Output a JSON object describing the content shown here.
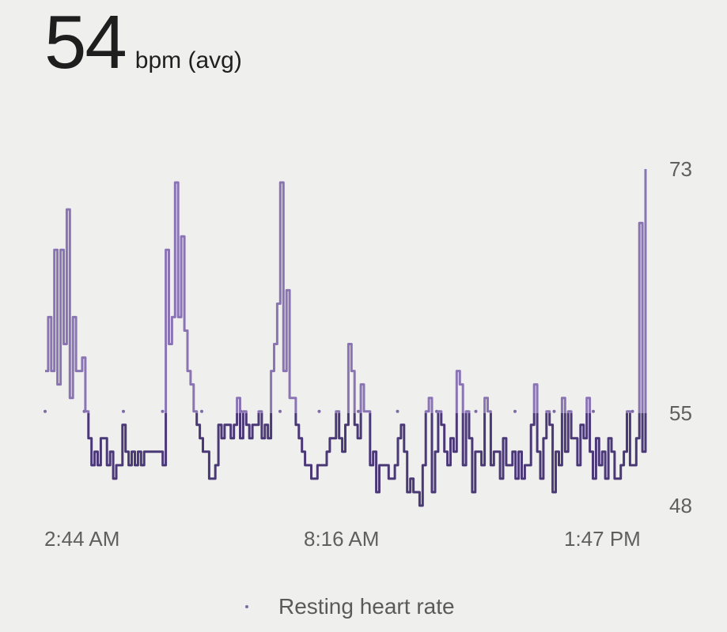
{
  "summary": {
    "value": "54",
    "unit": "bpm (avg)"
  },
  "legend": {
    "label": "Resting heart rate"
  },
  "colors": {
    "above": "#8a74b4",
    "below": "#4b3877",
    "resting_dot": "#7d6aa6",
    "background": "#eff0ee"
  },
  "chart_data": {
    "type": "line",
    "ylim": [
      48,
      73
    ],
    "y_ticks": [
      "73",
      "55",
      "48"
    ],
    "x_ticks": [
      "2:44 AM",
      "8:16 AM",
      "1:47 PM"
    ],
    "resting_rate": 55,
    "series": [
      {
        "values": [
          58,
          62,
          58,
          67,
          57,
          67,
          60,
          70,
          56,
          62,
          58,
          58,
          59,
          55,
          53,
          51,
          52,
          51,
          53,
          53,
          51,
          52,
          50,
          51,
          51,
          54,
          52,
          51,
          52,
          51,
          52,
          51,
          52,
          52,
          52,
          52,
          52,
          52,
          51,
          67,
          60,
          62,
          72,
          62,
          68,
          61,
          58,
          57,
          55,
          54,
          53,
          52,
          52,
          50,
          50,
          51,
          54,
          53,
          54,
          54,
          53,
          54,
          56,
          53,
          55,
          54,
          53,
          54,
          54,
          55,
          53,
          54,
          53,
          58,
          60,
          63,
          72,
          58,
          64,
          56,
          56,
          54,
          53,
          52,
          51,
          51,
          50,
          50,
          51,
          51,
          51,
          52,
          53,
          53,
          55,
          53,
          52,
          54,
          60,
          58,
          54,
          53,
          57,
          55,
          55,
          51,
          52,
          49,
          51,
          51,
          51,
          50,
          50,
          51,
          53,
          54,
          52,
          49,
          50,
          49,
          49,
          48,
          51,
          55,
          56,
          49,
          52,
          55,
          54,
          52,
          51,
          53,
          52,
          58,
          57,
          51,
          55,
          53,
          49,
          52,
          52,
          51,
          56,
          55,
          51,
          52,
          52,
          50,
          53,
          51,
          51,
          52,
          50,
          52,
          50,
          51,
          51,
          54,
          57,
          52,
          50,
          53,
          55,
          54,
          49,
          52,
          51,
          56,
          52,
          55,
          53,
          53,
          51,
          54,
          53,
          56,
          52,
          50,
          53,
          51,
          52,
          50,
          53,
          52,
          50,
          50,
          51,
          52,
          55,
          51,
          51,
          53,
          69,
          52,
          73
        ]
      }
    ]
  }
}
